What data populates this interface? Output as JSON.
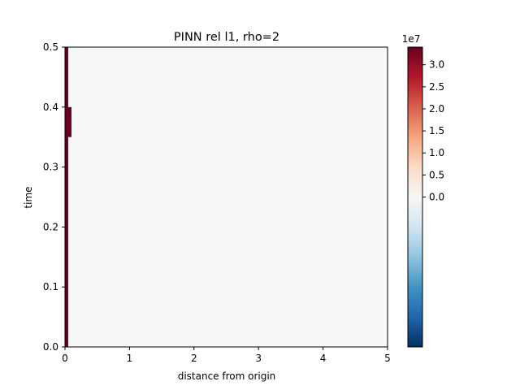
{
  "chart_data": {
    "type": "heatmap",
    "title": "PINN rel l1, rho=2",
    "xlabel": "distance from origin",
    "ylabel": "time",
    "xlim": [
      0,
      5
    ],
    "ylim": [
      0,
      0.5
    ],
    "x_ticks": [
      "0",
      "1",
      "2",
      "3",
      "4",
      "5"
    ],
    "y_ticks": [
      "0.0",
      "0.1",
      "0.2",
      "0.3",
      "0.4",
      "0.5"
    ],
    "background_value": 0,
    "cells": [
      {
        "x": [
          0.0,
          0.05
        ],
        "y": [
          0.0,
          0.5
        ],
        "value": 34000000.0
      },
      {
        "x": [
          0.05,
          0.1
        ],
        "y": [
          0.35,
          0.4
        ],
        "value": 34000000.0
      }
    ],
    "colorbar": {
      "colormap": "RdBu_r",
      "min": -34000000.0,
      "max": 34000000.0,
      "multiplier": "1e7",
      "tick_values": [
        0.0,
        0.5,
        1.0,
        1.5,
        2.0,
        2.5,
        3.0
      ],
      "tick_labels": [
        "0.0",
        "0.5",
        "1.0",
        "1.5",
        "2.0",
        "2.5",
        "3.0"
      ],
      "colors": {
        "low": "#053061",
        "mid": "#f7f7f7",
        "high": "#67001f"
      }
    },
    "grid": false
  }
}
